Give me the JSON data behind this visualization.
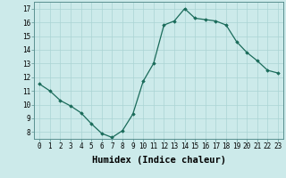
{
  "x": [
    0,
    1,
    2,
    3,
    4,
    5,
    6,
    7,
    8,
    9,
    10,
    11,
    12,
    13,
    14,
    15,
    16,
    17,
    18,
    19,
    20,
    21,
    22,
    23
  ],
  "y": [
    11.5,
    11.0,
    10.3,
    9.9,
    9.4,
    8.6,
    7.9,
    7.6,
    8.1,
    9.3,
    11.7,
    13.0,
    15.8,
    16.1,
    17.0,
    16.3,
    16.2,
    16.1,
    15.8,
    14.6,
    13.8,
    13.2,
    12.5,
    12.3
  ],
  "line_color": "#1a6b5a",
  "marker": "D",
  "marker_size": 1.8,
  "bg_color": "#cceaea",
  "grid_color": "#aad4d4",
  "xlabel": "Humidex (Indice chaleur)",
  "xlim": [
    -0.5,
    23.5
  ],
  "ylim": [
    7.5,
    17.5
  ],
  "yticks": [
    8,
    9,
    10,
    11,
    12,
    13,
    14,
    15,
    16,
    17
  ],
  "xticks": [
    0,
    1,
    2,
    3,
    4,
    5,
    6,
    7,
    8,
    9,
    10,
    11,
    12,
    13,
    14,
    15,
    16,
    17,
    18,
    19,
    20,
    21,
    22,
    23
  ],
  "tick_fontsize": 5.5,
  "xlabel_fontsize": 7.5
}
